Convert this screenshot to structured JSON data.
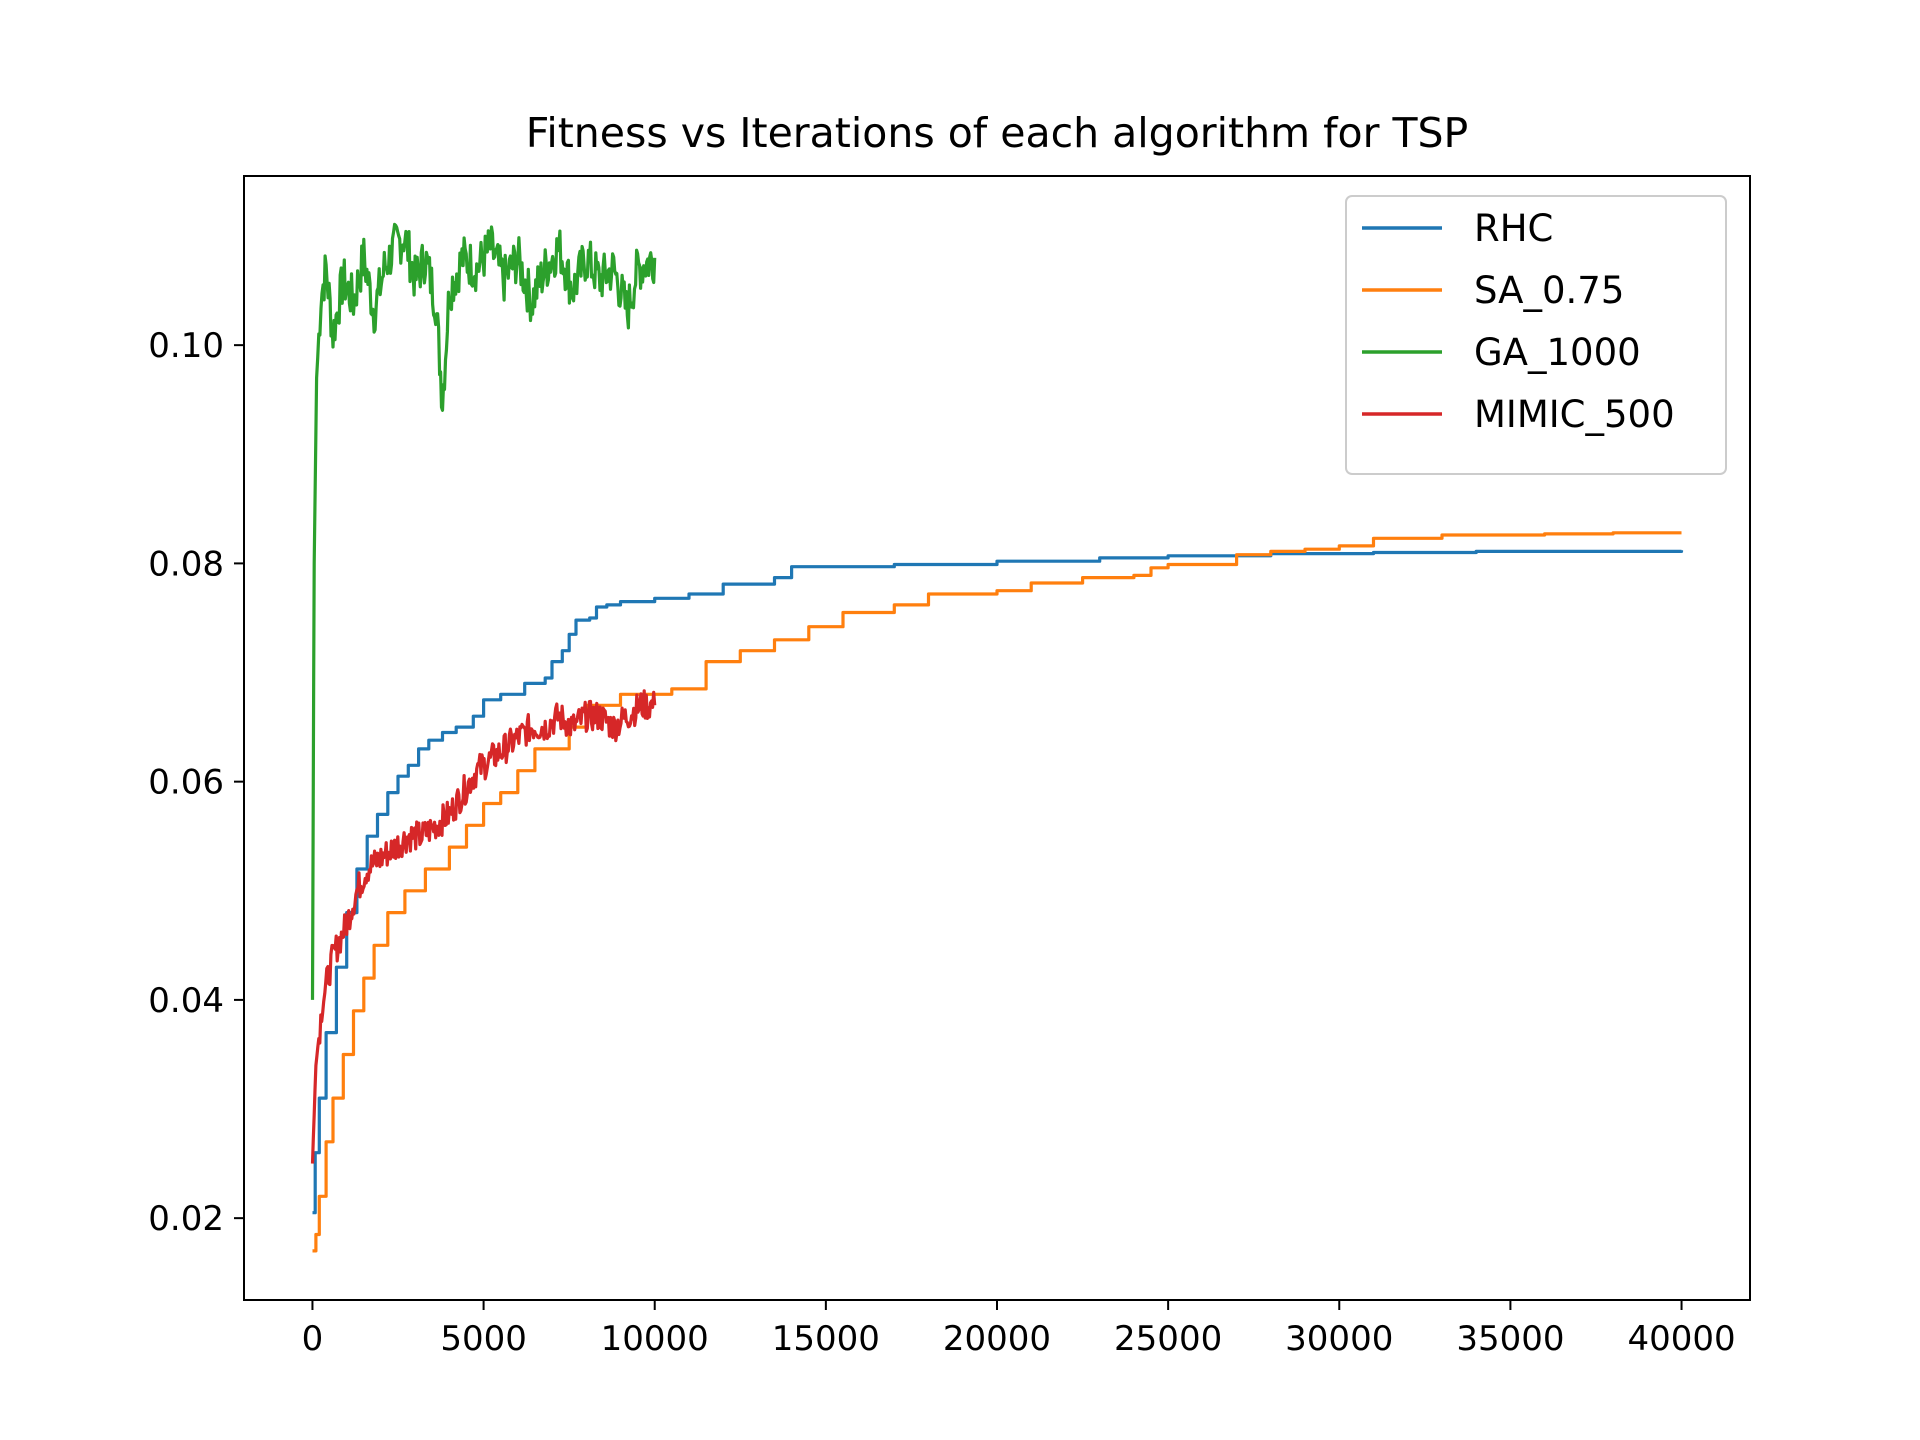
{
  "chart_data": {
    "type": "line",
    "title": "Fitness vs Iterations of each algorithm for TSP",
    "xlabel": "",
    "ylabel": "",
    "xlim": [
      -2000,
      42000
    ],
    "ylim": [
      0.0125,
      0.1155
    ],
    "xticks": [
      0,
      5000,
      10000,
      15000,
      20000,
      25000,
      30000,
      35000,
      40000
    ],
    "xtick_labels": [
      "0",
      "5000",
      "10000",
      "15000",
      "20000",
      "25000",
      "30000",
      "35000",
      "40000"
    ],
    "yticks": [
      0.02,
      0.04,
      0.06,
      0.08,
      0.1
    ],
    "ytick_labels": [
      "0.02",
      "0.04",
      "0.06",
      "0.08",
      "0.10"
    ],
    "grid": false,
    "legend_position": "top-right",
    "series": [
      {
        "name": "RHC",
        "color": "#1f77b4",
        "style": "step",
        "points": [
          [
            0,
            0.0205
          ],
          [
            80,
            0.026
          ],
          [
            200,
            0.031
          ],
          [
            400,
            0.037
          ],
          [
            700,
            0.043
          ],
          [
            1000,
            0.048
          ],
          [
            1300,
            0.052
          ],
          [
            1600,
            0.055
          ],
          [
            1900,
            0.057
          ],
          [
            2200,
            0.059
          ],
          [
            2500,
            0.0605
          ],
          [
            2800,
            0.0615
          ],
          [
            3100,
            0.063
          ],
          [
            3400,
            0.0638
          ],
          [
            3800,
            0.0645
          ],
          [
            4200,
            0.065
          ],
          [
            4700,
            0.066
          ],
          [
            5000,
            0.0675
          ],
          [
            5500,
            0.068
          ],
          [
            6200,
            0.069
          ],
          [
            6800,
            0.0695
          ],
          [
            7000,
            0.071
          ],
          [
            7300,
            0.072
          ],
          [
            7500,
            0.0735
          ],
          [
            7700,
            0.0748
          ],
          [
            8100,
            0.075
          ],
          [
            8300,
            0.076
          ],
          [
            8600,
            0.0762
          ],
          [
            9000,
            0.0765
          ],
          [
            10000,
            0.0768
          ],
          [
            11000,
            0.0772
          ],
          [
            12000,
            0.0781
          ],
          [
            13500,
            0.0787
          ],
          [
            14000,
            0.0797
          ],
          [
            17000,
            0.0799
          ],
          [
            20000,
            0.0802
          ],
          [
            23000,
            0.0805
          ],
          [
            25000,
            0.0807
          ],
          [
            28000,
            0.0809
          ],
          [
            31000,
            0.081
          ],
          [
            34000,
            0.0811
          ],
          [
            37000,
            0.0811
          ],
          [
            40000,
            0.0812
          ]
        ]
      },
      {
        "name": "SA_0.75",
        "color": "#ff7f0e",
        "style": "step",
        "points": [
          [
            0,
            0.017
          ],
          [
            100,
            0.0185
          ],
          [
            200,
            0.022
          ],
          [
            400,
            0.027
          ],
          [
            600,
            0.031
          ],
          [
            900,
            0.035
          ],
          [
            1200,
            0.039
          ],
          [
            1500,
            0.042
          ],
          [
            1800,
            0.045
          ],
          [
            2200,
            0.048
          ],
          [
            2700,
            0.05
          ],
          [
            3300,
            0.052
          ],
          [
            4000,
            0.054
          ],
          [
            4500,
            0.056
          ],
          [
            5000,
            0.058
          ],
          [
            5500,
            0.059
          ],
          [
            6000,
            0.061
          ],
          [
            6500,
            0.063
          ],
          [
            7500,
            0.065
          ],
          [
            8000,
            0.067
          ],
          [
            9000,
            0.068
          ],
          [
            10500,
            0.0685
          ],
          [
            11500,
            0.071
          ],
          [
            12500,
            0.072
          ],
          [
            13500,
            0.073
          ],
          [
            14500,
            0.0742
          ],
          [
            15500,
            0.0755
          ],
          [
            17000,
            0.0762
          ],
          [
            18000,
            0.0772
          ],
          [
            20000,
            0.0775
          ],
          [
            21000,
            0.0782
          ],
          [
            22500,
            0.0787
          ],
          [
            24000,
            0.0789
          ],
          [
            24500,
            0.0796
          ],
          [
            25000,
            0.0799
          ],
          [
            27000,
            0.0808
          ],
          [
            28000,
            0.0811
          ],
          [
            29000,
            0.0813
          ],
          [
            30000,
            0.0816
          ],
          [
            31000,
            0.0823
          ],
          [
            33000,
            0.0826
          ],
          [
            36000,
            0.0827
          ],
          [
            38000,
            0.0828
          ],
          [
            40000,
            0.0828
          ]
        ]
      },
      {
        "name": "GA_1000",
        "color": "#2ca02c",
        "style": "noisy",
        "points": [
          [
            0,
            0.04
          ],
          [
            50,
            0.08
          ],
          [
            120,
            0.097
          ],
          [
            250,
            0.1045
          ],
          [
            400,
            0.107
          ],
          [
            600,
            0.101
          ],
          [
            900,
            0.106
          ],
          [
            1200,
            0.104
          ],
          [
            1500,
            0.108
          ],
          [
            1800,
            0.103
          ],
          [
            2100,
            0.107
          ],
          [
            2400,
            0.109
          ],
          [
            2700,
            0.11
          ],
          [
            3000,
            0.106
          ],
          [
            3300,
            0.108
          ],
          [
            3600,
            0.104
          ],
          [
            3800,
            0.095
          ],
          [
            4000,
            0.105
          ],
          [
            4400,
            0.108
          ],
          [
            4800,
            0.107
          ],
          [
            5200,
            0.109
          ],
          [
            5600,
            0.106
          ],
          [
            6000,
            0.108
          ],
          [
            6400,
            0.104
          ],
          [
            6800,
            0.107
          ],
          [
            7200,
            0.109
          ],
          [
            7600,
            0.105
          ],
          [
            8000,
            0.108
          ],
          [
            8400,
            0.106
          ],
          [
            8800,
            0.107
          ],
          [
            9200,
            0.103
          ],
          [
            9500,
            0.107
          ],
          [
            10000,
            0.108
          ]
        ]
      },
      {
        "name": "MIMIC_500",
        "color": "#d62728",
        "style": "noisy",
        "points": [
          [
            0,
            0.025
          ],
          [
            100,
            0.034
          ],
          [
            300,
            0.04
          ],
          [
            600,
            0.044
          ],
          [
            1000,
            0.047
          ],
          [
            1300,
            0.05
          ],
          [
            1600,
            0.052
          ],
          [
            2000,
            0.053
          ],
          [
            2400,
            0.054
          ],
          [
            2800,
            0.055
          ],
          [
            3200,
            0.055
          ],
          [
            3600,
            0.056
          ],
          [
            4000,
            0.057
          ],
          [
            4400,
            0.059
          ],
          [
            4800,
            0.061
          ],
          [
            5200,
            0.062
          ],
          [
            5600,
            0.063
          ],
          [
            6000,
            0.064
          ],
          [
            6400,
            0.065
          ],
          [
            6800,
            0.065
          ],
          [
            7200,
            0.066
          ],
          [
            7600,
            0.065
          ],
          [
            8000,
            0.066
          ],
          [
            8400,
            0.066
          ],
          [
            8800,
            0.065
          ],
          [
            9200,
            0.066
          ],
          [
            9600,
            0.067
          ],
          [
            10000,
            0.067
          ]
        ]
      }
    ]
  }
}
